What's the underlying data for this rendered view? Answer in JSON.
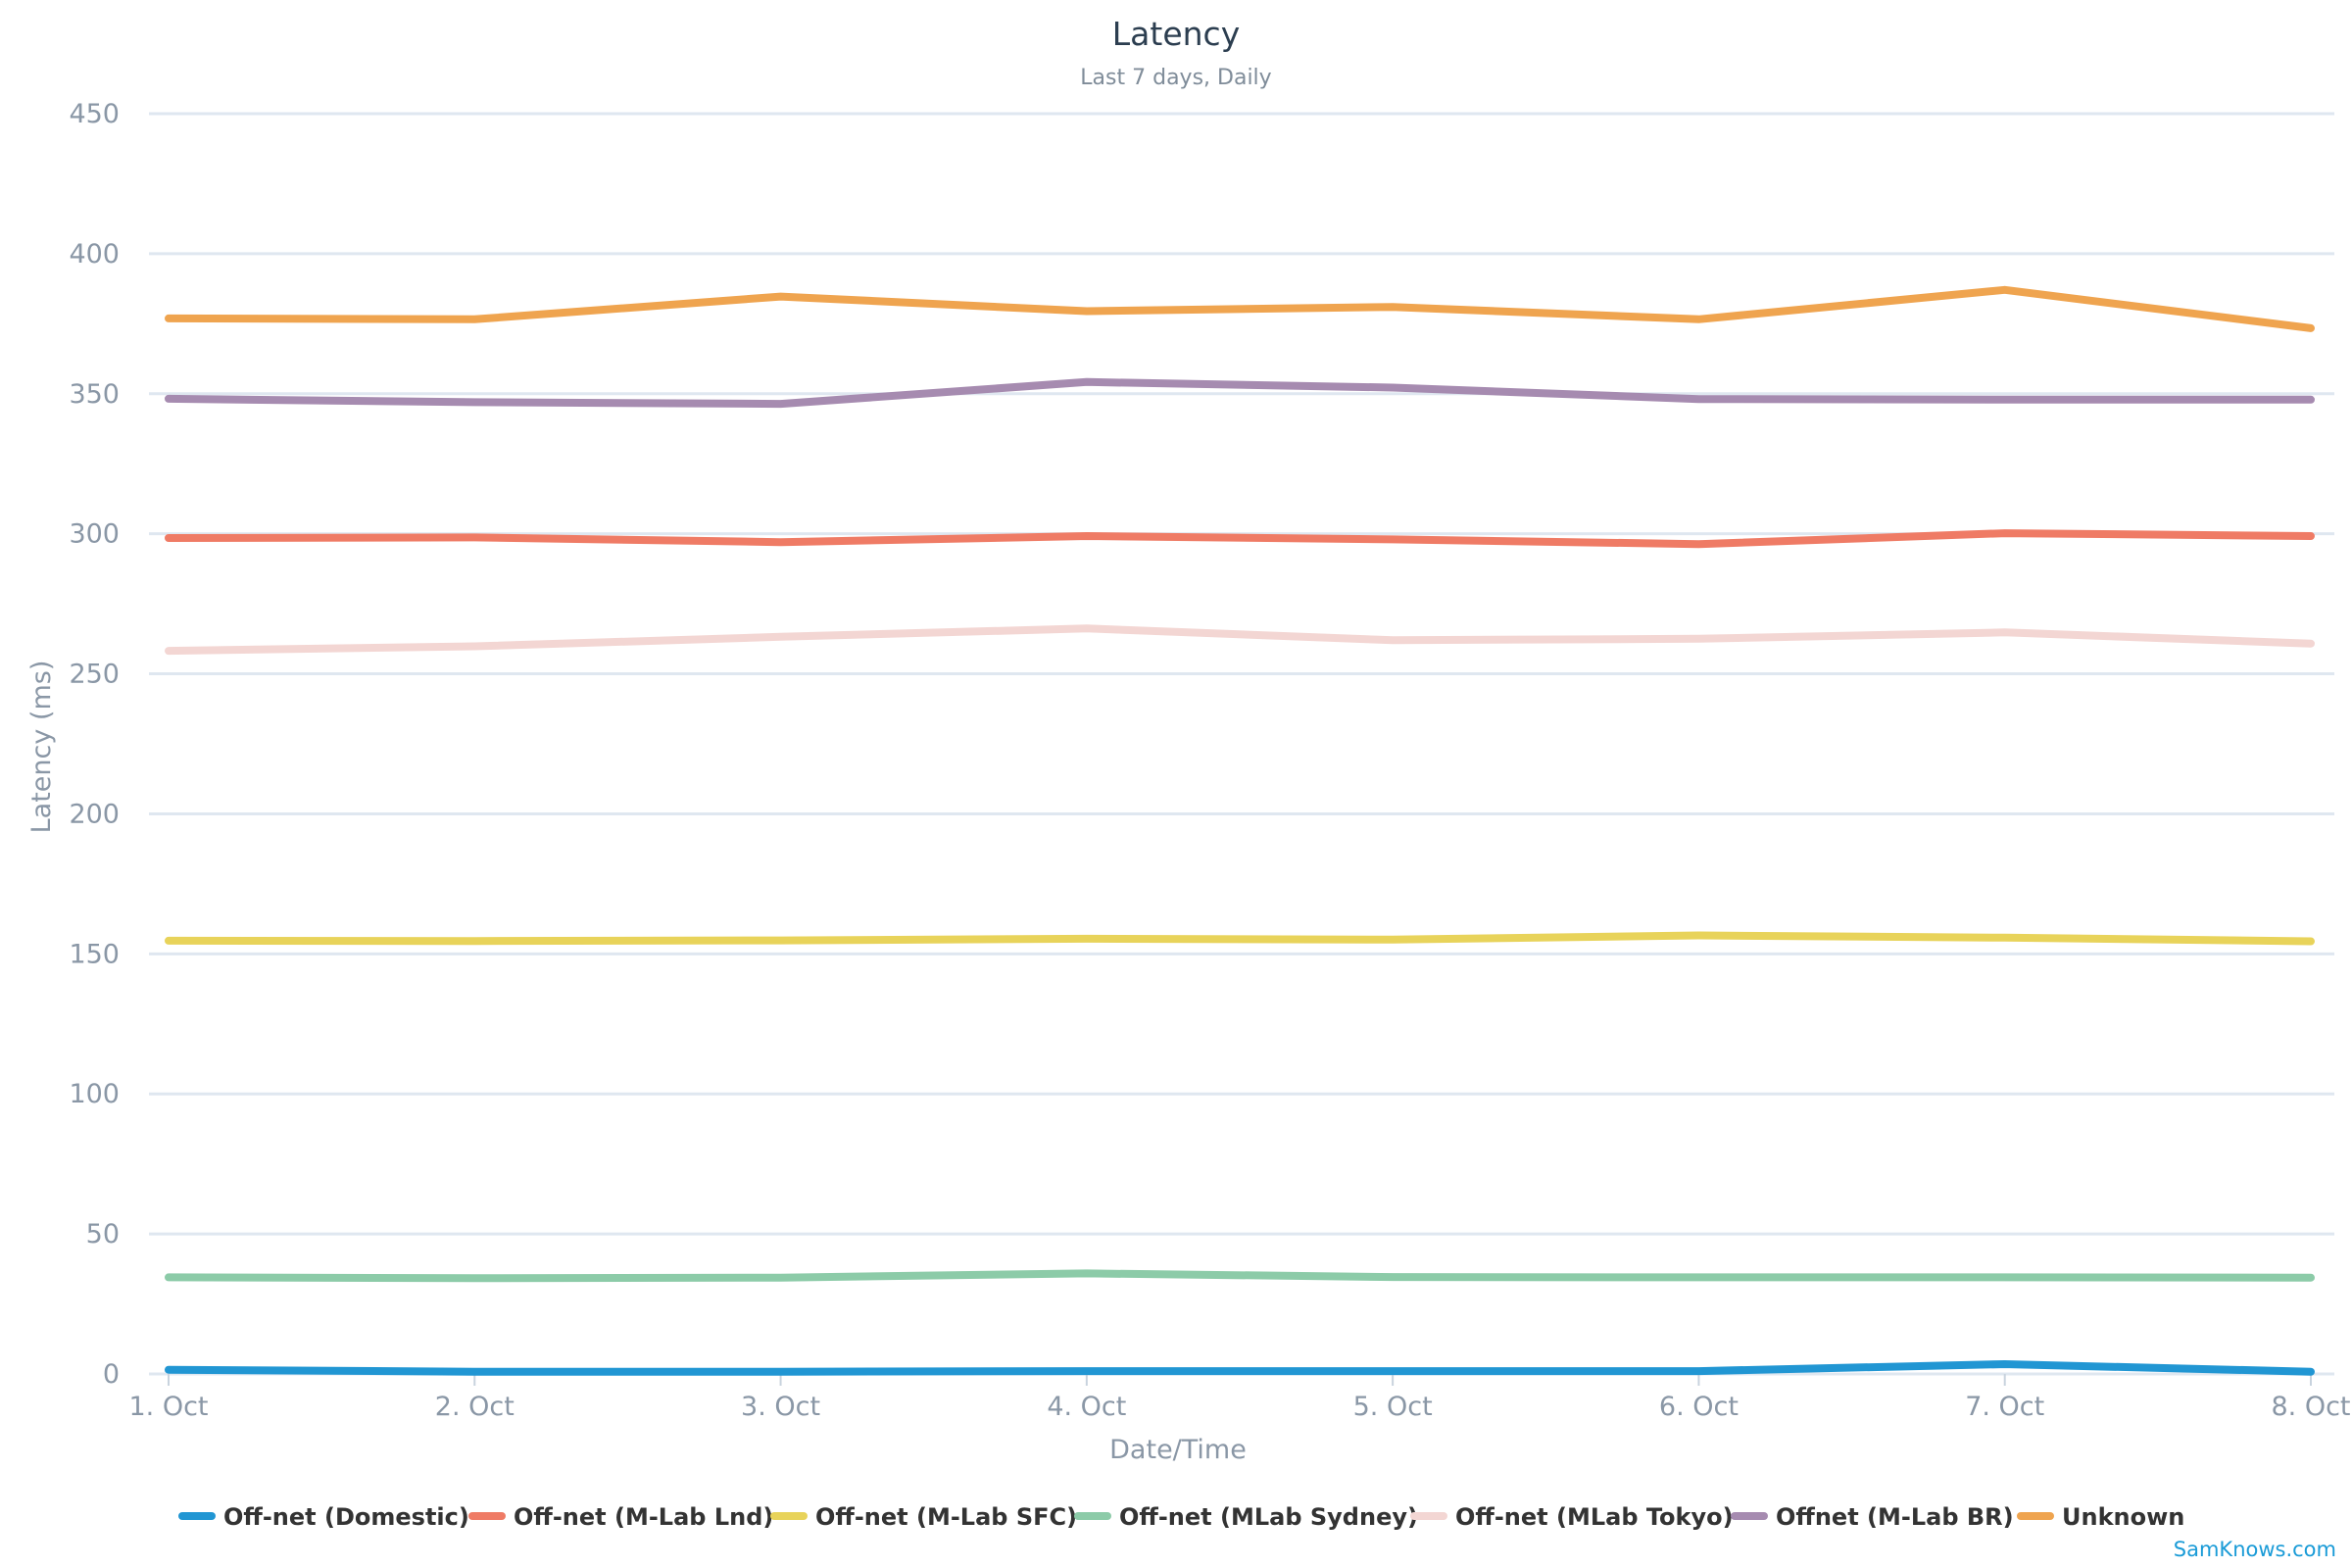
{
  "chart_data": {
    "type": "line",
    "title": "Latency",
    "subtitle": "Last 7 days, Daily",
    "xlabel": "Date/Time",
    "ylabel": "Latency (ms)",
    "ylim": [
      0,
      450
    ],
    "yticks": [
      0,
      50,
      100,
      150,
      200,
      250,
      300,
      350,
      400,
      450
    ],
    "categories": [
      "1. Oct",
      "2. Oct",
      "3. Oct",
      "4. Oct",
      "5. Oct",
      "6. Oct",
      "7. Oct",
      "8. Oct"
    ],
    "grid": true,
    "legend_position": "bottom",
    "series": [
      {
        "name": "Off-net (Domestic)",
        "color": "#2196d3",
        "values": [
          1.5,
          0.8,
          0.8,
          1.0,
          1.0,
          1.0,
          3.5,
          0.8
        ]
      },
      {
        "name": "Off-net (M-Lab Lnd)",
        "color": "#ef7b65",
        "values": [
          298.5,
          298.7,
          297.0,
          299.2,
          298.0,
          296.3,
          300.2,
          299.2
        ]
      },
      {
        "name": "Off-net (M-Lab SFC)",
        "color": "#e8d35a",
        "values": [
          154.7,
          154.6,
          154.8,
          155.4,
          155.1,
          156.6,
          155.8,
          154.5
        ]
      },
      {
        "name": "Off-net (MLab Sydney)",
        "color": "#8ccba8",
        "values": [
          34.5,
          34.2,
          34.4,
          35.9,
          34.6,
          34.5,
          34.5,
          34.4
        ]
      },
      {
        "name": "Off-net (MLab Tokyo)",
        "color": "#f3d6d3",
        "values": [
          258.2,
          259.8,
          263.2,
          266.2,
          262.0,
          262.5,
          264.8,
          260.8
        ]
      },
      {
        "name": "Offnet (M-Lab BR)",
        "color": "#a68bb0",
        "values": [
          348.2,
          347.0,
          346.4,
          354.2,
          352.2,
          348.1,
          347.9,
          347.9
        ]
      },
      {
        "name": "Unknown",
        "color": "#efa44f",
        "values": [
          376.9,
          376.6,
          384.7,
          379.5,
          381.0,
          376.6,
          387.1,
          373.4
        ]
      }
    ],
    "credits": "SamKnows.com",
    "credits_color": "#1a9bd7"
  }
}
